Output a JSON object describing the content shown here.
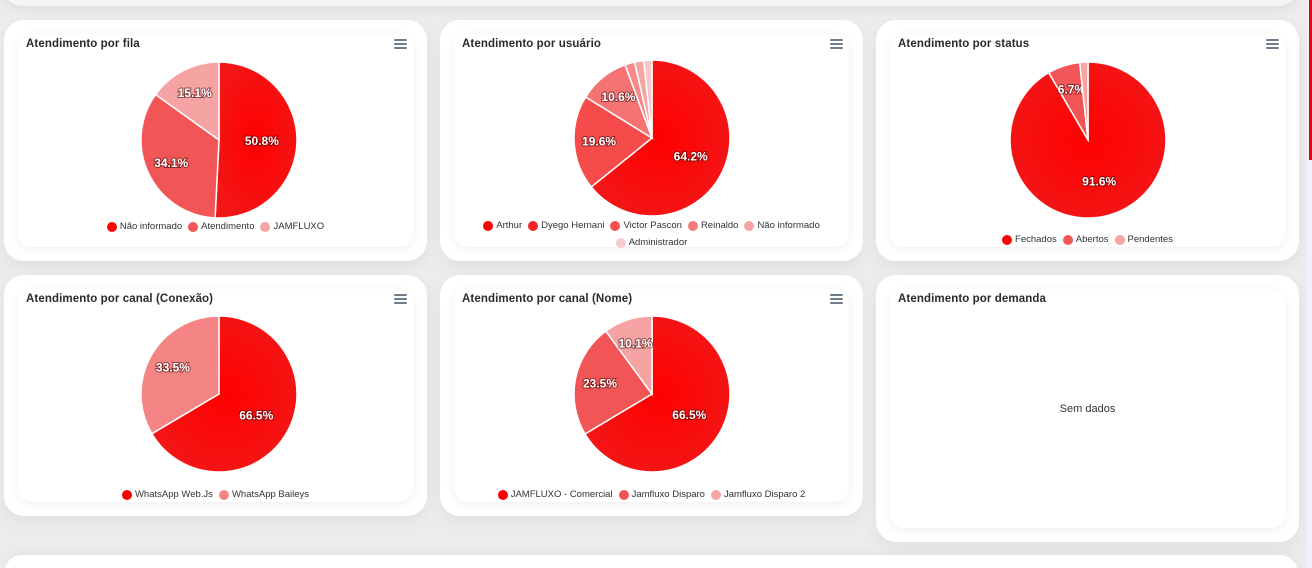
{
  "charts": [
    {
      "id": "fila",
      "title": "Atendimento por fila",
      "menu_icon": "hamburger-menu-icon",
      "labels": [
        "50.8%",
        "34.1%",
        "15.1%"
      ],
      "legend": [
        "Não informado",
        "Atendimento",
        "JAMFLUXO"
      ]
    },
    {
      "id": "usuario",
      "title": "Atendimento por usuário",
      "menu_icon": "hamburger-menu-icon",
      "labels": [
        "64.2%",
        "19.6%",
        "10.6%"
      ],
      "legend": [
        "Arthur",
        "Dyego Hernani",
        "Victor Pascon",
        "Reinaldo",
        "Não informado",
        "Administrador"
      ]
    },
    {
      "id": "status",
      "title": "Atendimento por status",
      "menu_icon": "hamburger-menu-icon",
      "labels": [
        "91.6%",
        "6.7%"
      ],
      "legend": [
        "Fechados",
        "Abertos",
        "Pendentes"
      ]
    },
    {
      "id": "canal_conexao",
      "title": "Atendimento por canal (Conexão)",
      "menu_icon": "hamburger-menu-icon",
      "labels": [
        "66.5%",
        "33.5%"
      ],
      "legend": [
        "WhatsApp Web.Js",
        "WhatsApp Baileys"
      ]
    },
    {
      "id": "canal_nome",
      "title": "Atendimento por canal (Nome)",
      "menu_icon": "hamburger-menu-icon",
      "labels": [
        "66.5%",
        "23.5%",
        "10.1%"
      ],
      "legend": [
        "JAMFLUXO - Comercial",
        "Jamfluxo Disparo",
        "Jamfluxo Disparo 2"
      ]
    },
    {
      "id": "demanda",
      "title": "Atendimento por demanda",
      "empty_text": "Sem dados"
    }
  ],
  "colors": {
    "primary": "#ff0000",
    "slice_palette": [
      "#f21818",
      "#f54b4b",
      "#f57373",
      "#f58a8a",
      "#f6a5a5",
      "#f8c6c6"
    ],
    "scrollbar_thumb": "#e8000b"
  },
  "chart_data": [
    {
      "type": "pie",
      "title": "Atendimento por fila",
      "categories": [
        "Não informado",
        "Atendimento",
        "JAMFLUXO"
      ],
      "values": [
        50.8,
        34.1,
        15.1
      ],
      "legend_position": "bottom"
    },
    {
      "type": "pie",
      "title": "Atendimento por usuário",
      "categories": [
        "Arthur",
        "Dyego Hernani",
        "Victor Pascon",
        "Reinaldo",
        "Não informado",
        "Administrador"
      ],
      "values": [
        64.2,
        19.6,
        10.6,
        2.0,
        1.9,
        1.7
      ],
      "legend_position": "bottom"
    },
    {
      "type": "pie",
      "title": "Atendimento por status",
      "categories": [
        "Fechados",
        "Abertos",
        "Pendentes"
      ],
      "values": [
        91.6,
        6.7,
        1.7
      ],
      "legend_position": "bottom"
    },
    {
      "type": "pie",
      "title": "Atendimento por canal (Conexão)",
      "categories": [
        "WhatsApp Web.Js",
        "WhatsApp Baileys"
      ],
      "values": [
        66.5,
        33.5
      ],
      "legend_position": "bottom"
    },
    {
      "type": "pie",
      "title": "Atendimento por canal (Nome)",
      "categories": [
        "JAMFLUXO - Comercial",
        "Jamfluxo Disparo",
        "Jamfluxo Disparo 2"
      ],
      "values": [
        66.5,
        23.5,
        10.1
      ],
      "legend_position": "bottom"
    },
    {
      "type": "pie",
      "title": "Atendimento por demanda",
      "categories": [],
      "values": [],
      "annotation": "Sem dados"
    }
  ]
}
